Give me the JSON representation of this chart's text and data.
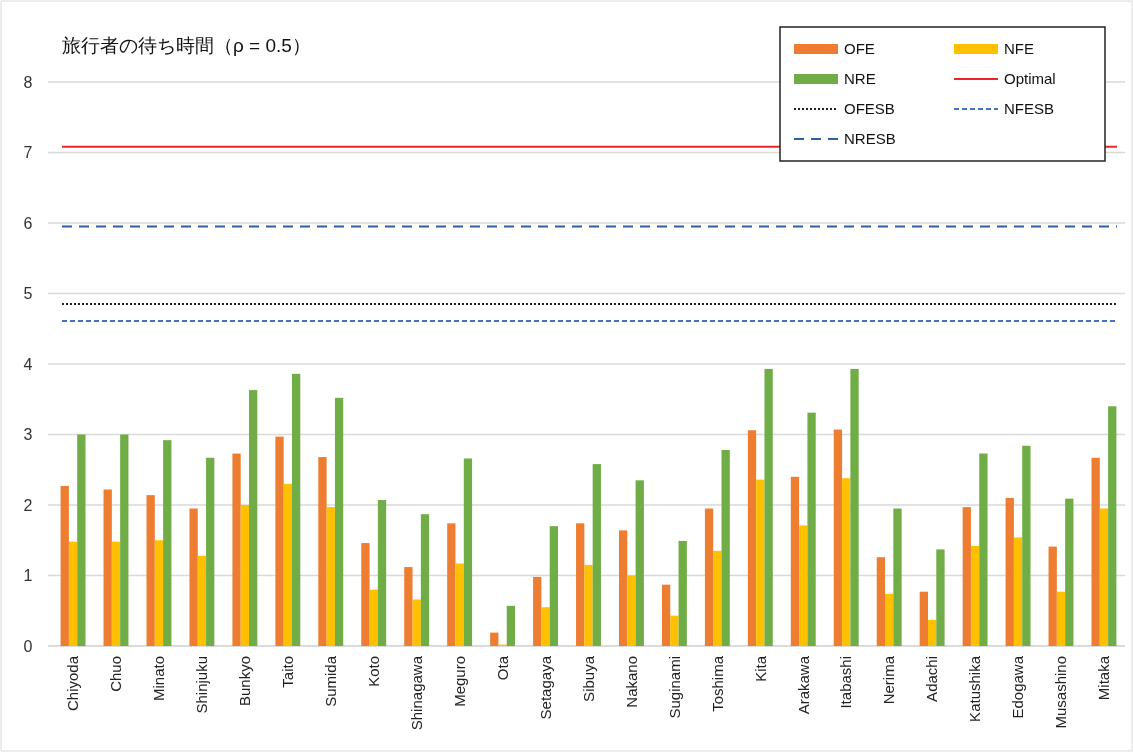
{
  "chart_data": {
    "type": "bar",
    "title": "旅行者の待ち時間（ρ = 0.5）",
    "categories": [
      "Chiyoda",
      "Chuo",
      "Minato",
      "Shinjuku",
      "Bunkyo",
      "Taito",
      "Sumida",
      "Koto",
      "Shinagawa",
      "Meguro",
      "Ota",
      "Setagaya",
      "Sibuya",
      "Nakano",
      "Suginami",
      "Toshima",
      "Kita",
      "Arakawa",
      "Itabashi",
      "Nerima",
      "Adachi",
      "Katushika",
      "Edogawa",
      "Musashino",
      "Mitaka"
    ],
    "series": [
      {
        "name": "OFE",
        "color": "#ed7d31",
        "values": [
          2.27,
          2.22,
          2.14,
          1.95,
          2.73,
          2.97,
          2.68,
          1.46,
          1.12,
          1.74,
          0.19,
          0.98,
          1.74,
          1.64,
          0.87,
          1.95,
          3.06,
          2.4,
          3.07,
          1.26,
          0.77,
          1.97,
          2.1,
          1.41,
          2.67
        ]
      },
      {
        "name": "NFE",
        "color": "#ffc000",
        "values": [
          1.48,
          1.48,
          1.5,
          1.28,
          2.0,
          2.3,
          1.97,
          0.8,
          0.66,
          1.17,
          0.02,
          0.55,
          1.15,
          1.0,
          0.43,
          1.35,
          2.36,
          1.71,
          2.38,
          0.74,
          0.37,
          1.42,
          1.54,
          0.77,
          1.95
        ]
      },
      {
        "name": "NRE",
        "color": "#70ad47",
        "values": [
          3.0,
          3.0,
          2.92,
          2.67,
          3.63,
          3.86,
          3.52,
          2.07,
          1.87,
          2.66,
          0.57,
          1.7,
          2.58,
          2.35,
          1.49,
          2.78,
          3.93,
          3.31,
          3.93,
          1.95,
          1.37,
          2.73,
          2.84,
          2.09,
          3.4
        ]
      }
    ],
    "ref_lines": [
      {
        "axis": "y",
        "value": 7.08,
        "label": "Optimal",
        "color": "#e8262a",
        "line_style": "solid"
      },
      {
        "axis": "y",
        "value": 4.85,
        "label": "OFESB",
        "color": "#222222",
        "line_style": "dotted"
      },
      {
        "axis": "y",
        "value": 4.61,
        "label": "NFESB",
        "color": "#4472c4",
        "line_style": "dashed"
      },
      {
        "axis": "y",
        "value": 5.95,
        "label": "NRESB",
        "color": "#2e5f9e",
        "line_style": "longdash"
      }
    ],
    "ylim": [
      0,
      8
    ],
    "yticks": [
      0,
      1,
      2,
      3,
      4,
      5,
      6,
      7,
      8
    ],
    "grid": "y",
    "legend": "top right"
  }
}
